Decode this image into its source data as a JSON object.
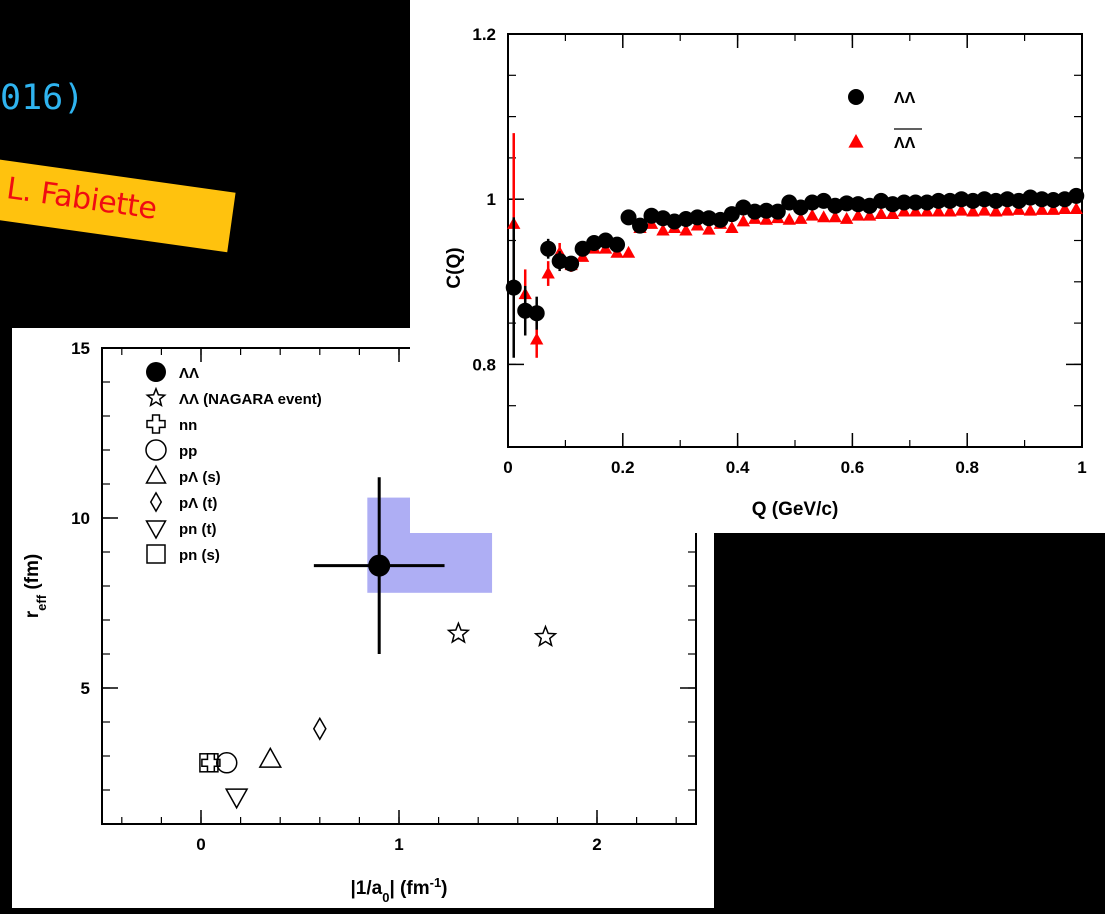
{
  "slide": {
    "title_fragment": "016)",
    "credit": "by L. Fabiette"
  },
  "colors": {
    "accent_title": "#2fb4f0",
    "banner": "#ffc20e",
    "banner_text": "#f00c12",
    "series_lambda": "#000000",
    "series_antilambda": "#ff0000",
    "band": "#8c8cf0"
  },
  "chart_data": [
    {
      "type": "scatter",
      "xlabel": "|1/a0| (fm⁻¹)",
      "ylabel": "reff (fm)",
      "xlim": [
        -0.5,
        2.5
      ],
      "ylim": [
        1,
        15
      ],
      "x_ticks": [
        "0",
        "1",
        "2"
      ],
      "y_ticks": [
        "5",
        "10",
        "15"
      ],
      "legend_position": "top-left",
      "series": [
        {
          "name": "ΛΛ",
          "marker": "filled-circle",
          "points": [
            {
              "x": 0.9,
              "y": 8.6,
              "xerr": [
                0.33,
                0.33
              ],
              "yerr": [
                2.6,
                2.6
              ],
              "sys_box": {
                "x": [
                  0.84,
                  1.47
                ],
                "y": [
                  7.8,
                  10.6
                ]
              }
            }
          ]
        },
        {
          "name": "ΛΛ (NAGARA event)",
          "marker": "star",
          "points": [
            {
              "x": 1.3,
              "y": 6.6
            },
            {
              "x": 1.74,
              "y": 6.5
            }
          ]
        },
        {
          "name": "nn",
          "marker": "cross",
          "points": [
            {
              "x": 0.05,
              "y": 2.8
            }
          ]
        },
        {
          "name": "pp",
          "marker": "circle",
          "points": [
            {
              "x": 0.13,
              "y": 2.8
            }
          ]
        },
        {
          "name": "pΛ (s)",
          "marker": "triangle-up",
          "points": [
            {
              "x": 0.35,
              "y": 2.9
            }
          ]
        },
        {
          "name": "pΛ (t)",
          "marker": "diamond",
          "points": [
            {
              "x": 0.6,
              "y": 3.8
            }
          ]
        },
        {
          "name": "pn (t)",
          "marker": "triangle-down",
          "points": [
            {
              "x": 0.18,
              "y": 1.8
            }
          ]
        },
        {
          "name": "pn (s)",
          "marker": "square",
          "points": [
            {
              "x": 0.04,
              "y": 2.8
            }
          ]
        }
      ]
    },
    {
      "type": "scatter",
      "xlabel": "Q (GeV/c)",
      "ylabel": "C(Q)",
      "xlim": [
        0,
        1
      ],
      "ylim": [
        0.7,
        1.2
      ],
      "x_ticks": [
        "0",
        "0.2",
        "0.4",
        "0.6",
        "0.8",
        "1"
      ],
      "y_ticks": [
        "0.8",
        "1",
        "1.2"
      ],
      "legend_position": "top-right",
      "series": [
        {
          "name": "ΛΛ",
          "marker": "filled-circle",
          "color": "#000000",
          "x": [
            0.01,
            0.03,
            0.05,
            0.07,
            0.09,
            0.11,
            0.13,
            0.15,
            0.17,
            0.19,
            0.21,
            0.23,
            0.25,
            0.27,
            0.29,
            0.31,
            0.33,
            0.35,
            0.37,
            0.39,
            0.41,
            0.43,
            0.45,
            0.47,
            0.49,
            0.51,
            0.53,
            0.55,
            0.57,
            0.59,
            0.61,
            0.63,
            0.65,
            0.67,
            0.69,
            0.71,
            0.73,
            0.75,
            0.77,
            0.79,
            0.81,
            0.83,
            0.85,
            0.87,
            0.89,
            0.91,
            0.93,
            0.95,
            0.97,
            0.99
          ],
          "y": [
            0.893,
            0.865,
            0.862,
            0.94,
            0.925,
            0.922,
            0.94,
            0.947,
            0.95,
            0.945,
            0.978,
            0.968,
            0.98,
            0.977,
            0.973,
            0.976,
            0.978,
            0.977,
            0.975,
            0.982,
            0.99,
            0.985,
            0.986,
            0.985,
            0.996,
            0.99,
            0.996,
            0.998,
            0.992,
            0.995,
            0.994,
            0.992,
            0.998,
            0.994,
            0.996,
            0.996,
            0.996,
            0.998,
            0.998,
            1.0,
            0.998,
            1.0,
            0.998,
            1.0,
            0.998,
            1.002,
            1.0,
            0.999,
            1.0,
            1.004
          ],
          "yerr": [
            0.085,
            0.03,
            0.02,
            0.012,
            0.012,
            0.008,
            0.006,
            0.006,
            0.006,
            0.006,
            0.006,
            0.005,
            0.005,
            0.005,
            0.005,
            0.005,
            0.005,
            0.005,
            0.005,
            0.005,
            0.005,
            0.005,
            0.005,
            0.005,
            0.005,
            0.005,
            0.005,
            0.005,
            0.005,
            0.005,
            0.005,
            0.005,
            0.005,
            0.005,
            0.005,
            0.005,
            0.005,
            0.005,
            0.005,
            0.005,
            0.005,
            0.005,
            0.005,
            0.005,
            0.005,
            0.005,
            0.005,
            0.005,
            0.005,
            0.005
          ]
        },
        {
          "name": "ΛΛ (bar)",
          "marker": "filled-triangle",
          "color": "#ff0000",
          "x": [
            0.01,
            0.03,
            0.05,
            0.07,
            0.09,
            0.11,
            0.13,
            0.15,
            0.17,
            0.19,
            0.21,
            0.23,
            0.25,
            0.27,
            0.29,
            0.31,
            0.33,
            0.35,
            0.37,
            0.39,
            0.41,
            0.43,
            0.45,
            0.47,
            0.49,
            0.51,
            0.53,
            0.55,
            0.57,
            0.59,
            0.61,
            0.63,
            0.65,
            0.67,
            0.69,
            0.71,
            0.73,
            0.75,
            0.77,
            0.79,
            0.81,
            0.83,
            0.85,
            0.87,
            0.89,
            0.91,
            0.93,
            0.95,
            0.97,
            0.99
          ],
          "y": [
            0.97,
            0.885,
            0.83,
            0.91,
            0.935,
            0.92,
            0.93,
            0.94,
            0.94,
            0.935,
            0.935,
            0.965,
            0.97,
            0.962,
            0.965,
            0.962,
            0.968,
            0.963,
            0.97,
            0.965,
            0.973,
            0.976,
            0.975,
            0.977,
            0.975,
            0.976,
            0.98,
            0.978,
            0.978,
            0.976,
            0.98,
            0.98,
            0.982,
            0.982,
            0.985,
            0.985,
            0.985,
            0.985,
            0.985,
            0.986,
            0.985,
            0.986,
            0.985,
            0.986,
            0.987,
            0.986,
            0.987,
            0.987,
            0.988,
            0.988
          ],
          "yerr": [
            0.11,
            0.03,
            0.022,
            0.015,
            0.012,
            0.008,
            0.006,
            0.006,
            0.006,
            0.006,
            0.006,
            0.005,
            0.005,
            0.005,
            0.005,
            0.005,
            0.005,
            0.005,
            0.005,
            0.005,
            0.005,
            0.005,
            0.005,
            0.005,
            0.005,
            0.005,
            0.005,
            0.005,
            0.005,
            0.005,
            0.005,
            0.005,
            0.005,
            0.005,
            0.005,
            0.005,
            0.005,
            0.005,
            0.005,
            0.005,
            0.005,
            0.005,
            0.005,
            0.005,
            0.005,
            0.005,
            0.005,
            0.005,
            0.005,
            0.005
          ]
        }
      ]
    }
  ]
}
